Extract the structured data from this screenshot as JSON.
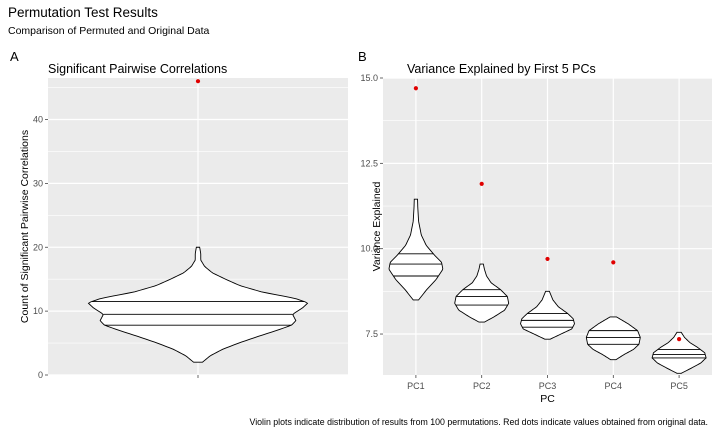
{
  "title": "Permutation Test Results",
  "subtitle": "Comparison of Permuted and Original Data",
  "caption": "Violin plots indicate distribution of results from 100 permutations. Red dots indicate values obtained from original data.",
  "colors": {
    "panel_bg": "#ebebeb",
    "grid": "#ffffff",
    "observed": "#e00000",
    "outline": "#000000"
  },
  "chart_data": [
    {
      "panel_tag": "A",
      "type": "violin",
      "title": "Significant Pairwise Correlations",
      "xlabel": "",
      "ylabel": "Count of Significant Pairwise Correlations",
      "ylim": [
        0,
        46.5
      ],
      "yticks": [
        0,
        10,
        20,
        30,
        40
      ],
      "categories": [
        ""
      ],
      "grid": true,
      "violins": [
        {
          "category": "",
          "min": 2,
          "max": 20,
          "quartiles": [
            7.8,
            9.5,
            11.5
          ],
          "density_profile": [
            [
              2,
              0.04
            ],
            [
              3,
              0.11
            ],
            [
              4,
              0.22
            ],
            [
              5,
              0.37
            ],
            [
              6,
              0.54
            ],
            [
              7,
              0.72
            ],
            [
              7.8,
              0.85
            ],
            [
              8.5,
              0.89
            ],
            [
              9.5,
              0.86
            ],
            [
              10.5,
              0.95
            ],
            [
              11.3,
              1.0
            ],
            [
              12,
              0.88
            ],
            [
              13,
              0.58
            ],
            [
              14,
              0.38
            ],
            [
              15,
              0.25
            ],
            [
              16,
              0.13
            ],
            [
              17,
              0.06
            ],
            [
              18,
              0.025
            ],
            [
              19,
              0.025
            ],
            [
              20,
              0.015
            ]
          ],
          "observed": 46
        }
      ]
    },
    {
      "panel_tag": "B",
      "type": "violin",
      "title": "Variance Explained by First 5 PCs",
      "xlabel": "PC",
      "ylabel": "Variance Explained",
      "ylim": [
        6.3,
        15.0
      ],
      "yticks": [
        7.5,
        10.0,
        12.5,
        15.0
      ],
      "ytick_labels": [
        "7.5",
        "10.0",
        "12.5",
        "15.0"
      ],
      "categories": [
        "PC1",
        "PC2",
        "PC3",
        "PC4",
        "PC5"
      ],
      "grid": true,
      "violins": [
        {
          "category": "PC1",
          "min": 8.5,
          "max": 11.45,
          "quartiles": [
            9.2,
            9.55,
            9.85
          ],
          "density_profile": [
            [
              8.5,
              0.1
            ],
            [
              8.8,
              0.4
            ],
            [
              9.1,
              0.75
            ],
            [
              9.4,
              1.0
            ],
            [
              9.6,
              0.95
            ],
            [
              9.8,
              0.7
            ],
            [
              10.1,
              0.38
            ],
            [
              10.4,
              0.2
            ],
            [
              10.8,
              0.1
            ],
            [
              11.2,
              0.07
            ],
            [
              11.45,
              0.06
            ]
          ],
          "observed": 14.7
        },
        {
          "category": "PC2",
          "min": 7.85,
          "max": 9.55,
          "quartiles": [
            8.35,
            8.6,
            8.8
          ],
          "density_profile": [
            [
              7.85,
              0.1
            ],
            [
              8.0,
              0.45
            ],
            [
              8.2,
              0.85
            ],
            [
              8.4,
              1.0
            ],
            [
              8.6,
              0.95
            ],
            [
              8.8,
              0.7
            ],
            [
              9.0,
              0.35
            ],
            [
              9.2,
              0.18
            ],
            [
              9.4,
              0.1
            ],
            [
              9.55,
              0.06
            ]
          ],
          "observed": 11.9
        },
        {
          "category": "PC3",
          "min": 7.35,
          "max": 8.75,
          "quartiles": [
            7.7,
            7.9,
            8.1
          ],
          "density_profile": [
            [
              7.35,
              0.1
            ],
            [
              7.5,
              0.5
            ],
            [
              7.65,
              0.9
            ],
            [
              7.8,
              1.0
            ],
            [
              7.95,
              0.95
            ],
            [
              8.1,
              0.75
            ],
            [
              8.3,
              0.4
            ],
            [
              8.5,
              0.2
            ],
            [
              8.75,
              0.07
            ]
          ],
          "observed": 9.7
        },
        {
          "category": "PC4",
          "min": 6.75,
          "max": 8.0,
          "quartiles": [
            7.2,
            7.4,
            7.6
          ],
          "density_profile": [
            [
              6.75,
              0.1
            ],
            [
              6.9,
              0.4
            ],
            [
              7.05,
              0.75
            ],
            [
              7.2,
              0.95
            ],
            [
              7.4,
              1.0
            ],
            [
              7.6,
              0.9
            ],
            [
              7.8,
              0.55
            ],
            [
              8.0,
              0.12
            ]
          ],
          "observed": 9.6
        },
        {
          "category": "PC5",
          "min": 6.35,
          "max": 7.55,
          "quartiles": [
            6.8,
            6.9,
            7.05
          ],
          "density_profile": [
            [
              6.35,
              0.08
            ],
            [
              6.5,
              0.45
            ],
            [
              6.65,
              0.8
            ],
            [
              6.8,
              1.0
            ],
            [
              6.95,
              0.95
            ],
            [
              7.1,
              0.7
            ],
            [
              7.25,
              0.4
            ],
            [
              7.4,
              0.2
            ],
            [
              7.55,
              0.08
            ]
          ],
          "observed": 7.35
        }
      ]
    }
  ]
}
